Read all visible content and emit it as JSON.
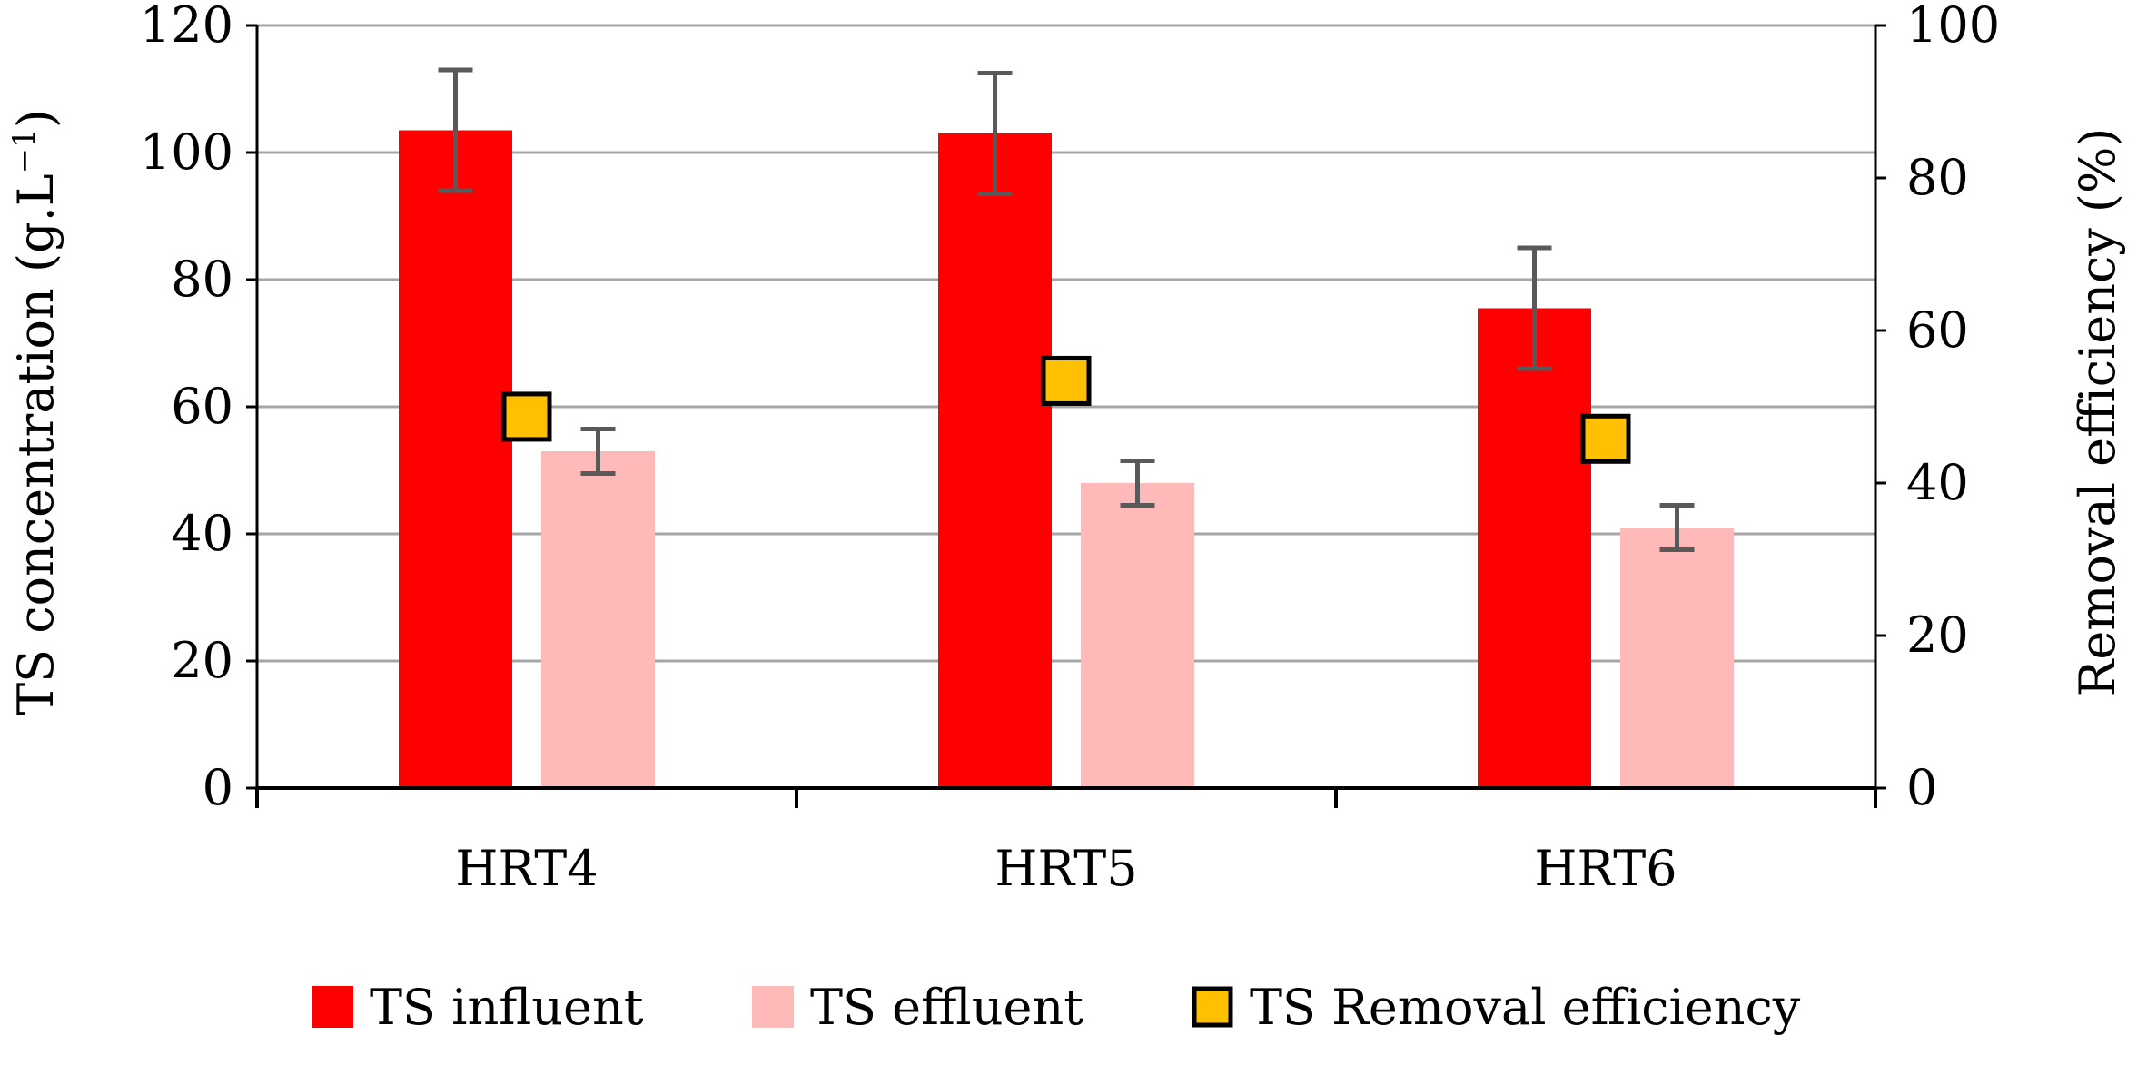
{
  "chart_data": {
    "type": "bar",
    "categories": [
      "HRT4",
      "HRT5",
      "HRT6"
    ],
    "series": [
      {
        "name": "TS influent",
        "axis": "left",
        "kind": "bar",
        "color": "#FF0000",
        "values": [
          103.5,
          103.0,
          75.5
        ],
        "errors": [
          9.5,
          9.5,
          9.5
        ]
      },
      {
        "name": "TS effluent",
        "axis": "left",
        "kind": "bar",
        "color": "#FFB9B9",
        "values": [
          53.0,
          48.0,
          41.0
        ],
        "errors": [
          3.5,
          3.5,
          3.5
        ]
      },
      {
        "name": "TS Removal efficiency",
        "axis": "right",
        "kind": "marker",
        "color": "#FFC000",
        "values": [
          48.7,
          53.4,
          45.8
        ]
      }
    ],
    "ylabel": "TS concentration (g.L",
    "ylabel_sup": "−1",
    "ylabel_close": ")",
    "y2label": "Removal efficiency (%)",
    "ylim": [
      0,
      120
    ],
    "y2lim": [
      0,
      100
    ],
    "yticks": [
      "0",
      "20",
      "40",
      "60",
      "80",
      "100",
      "120"
    ],
    "y2ticks": [
      "0",
      "20",
      "40",
      "60",
      "80",
      "100"
    ],
    "grid": true,
    "legend_position": "bottom"
  }
}
